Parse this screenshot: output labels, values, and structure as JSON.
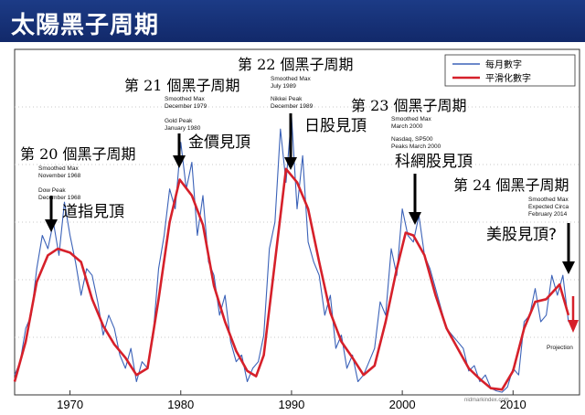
{
  "header": {
    "title": "太陽黑子周期"
  },
  "chart_data": {
    "type": "line",
    "xlim": [
      1965,
      2016
    ],
    "ylim": [
      0,
      260
    ],
    "x_ticks": [
      "1970",
      "1980",
      "1990",
      "2000",
      "2010"
    ],
    "x_tick_values": [
      1970,
      1980,
      1990,
      2000,
      2010
    ],
    "colors": {
      "monthly": "#3b62b8",
      "smoothed": "#d6202a",
      "arrow_red": "#d6202a"
    },
    "series": [
      {
        "name": "平滑化數字",
        "style": "smoothed",
        "x": [
          1965.0,
          1966.0,
          1967.0,
          1968.0,
          1968.9,
          1970.0,
          1971.0,
          1972.0,
          1973.0,
          1974.0,
          1975.0,
          1976.0,
          1977.0,
          1978.0,
          1979.0,
          1979.9,
          1981.0,
          1982.0,
          1983.0,
          1984.0,
          1985.0,
          1986.0,
          1986.8,
          1987.5,
          1988.5,
          1989.5,
          1990.5,
          1991.5,
          1992.5,
          1993.5,
          1994.5,
          1995.5,
          1996.5,
          1997.5,
          1998.5,
          1999.5,
          2000.3,
          2001.0,
          2002.0,
          2003.0,
          2004.0,
          2005.0,
          2006.0,
          2007.0,
          2008.0,
          2009.0,
          2010.0,
          2011.0,
          2012.0,
          2013.0,
          2014.2,
          2015.0
        ],
        "y": [
          10,
          40,
          85,
          105,
          110,
          107,
          100,
          72,
          52,
          38,
          28,
          15,
          20,
          72,
          130,
          162,
          150,
          128,
          82,
          55,
          33,
          18,
          14,
          30,
          100,
          170,
          160,
          140,
          100,
          62,
          40,
          28,
          15,
          22,
          55,
          95,
          122,
          120,
          105,
          75,
          50,
          35,
          20,
          12,
          5,
          4,
          18,
          50,
          70,
          72,
          83,
          60
        ]
      },
      {
        "name": "每月數字",
        "style": "monthly",
        "x": [
          1965.0,
          1965.5,
          1966.0,
          1966.5,
          1967.0,
          1967.5,
          1968.0,
          1968.5,
          1969.0,
          1969.5,
          1970.0,
          1970.5,
          1971.0,
          1971.5,
          1972.0,
          1972.5,
          1973.0,
          1973.5,
          1974.0,
          1974.5,
          1975.0,
          1975.5,
          1976.0,
          1976.5,
          1977.0,
          1977.5,
          1978.0,
          1978.5,
          1979.0,
          1979.5,
          1980.0,
          1980.5,
          1981.0,
          1981.5,
          1982.0,
          1982.5,
          1983.0,
          1983.5,
          1984.0,
          1984.5,
          1985.0,
          1985.5,
          1986.0,
          1986.5,
          1987.0,
          1987.5,
          1988.0,
          1988.5,
          1989.0,
          1989.5,
          1990.0,
          1990.5,
          1991.0,
          1991.5,
          1992.0,
          1992.5,
          1993.0,
          1993.5,
          1994.0,
          1994.5,
          1995.0,
          1995.5,
          1996.0,
          1996.5,
          1997.0,
          1997.5,
          1998.0,
          1998.5,
          1999.0,
          1999.5,
          2000.0,
          2000.5,
          2001.0,
          2001.5,
          2002.0,
          2002.5,
          2003.0,
          2003.5,
          2004.0,
          2004.5,
          2005.0,
          2005.5,
          2006.0,
          2006.5,
          2007.0,
          2007.5,
          2008.0,
          2008.5,
          2009.0,
          2009.5,
          2010.0,
          2010.5,
          2011.0,
          2011.5,
          2012.0,
          2012.5,
          2013.0,
          2013.5,
          2014.0,
          2014.5,
          2015.0
        ],
        "y": [
          15,
          25,
          50,
          60,
          95,
          120,
          110,
          130,
          105,
          145,
          120,
          100,
          75,
          95,
          90,
          70,
          45,
          60,
          50,
          30,
          20,
          35,
          10,
          25,
          20,
          45,
          95,
          120,
          155,
          140,
          190,
          155,
          175,
          120,
          150,
          100,
          90,
          60,
          75,
          40,
          25,
          30,
          10,
          20,
          25,
          45,
          110,
          130,
          200,
          160,
          210,
          140,
          180,
          115,
          100,
          90,
          60,
          75,
          35,
          45,
          20,
          30,
          10,
          15,
          25,
          35,
          70,
          60,
          110,
          90,
          140,
          120,
          115,
          135,
          105,
          95,
          80,
          65,
          50,
          45,
          40,
          35,
          18,
          22,
          10,
          15,
          5,
          3,
          2,
          6,
          20,
          15,
          55,
          60,
          80,
          55,
          60,
          90,
          75,
          90,
          55
        ]
      }
    ],
    "cycles": [
      {
        "label": "第 20 個黑子周期",
        "notes": [
          "Smoothed Max",
          "November 1968",
          "Dow Peak",
          "December 1968"
        ],
        "event": "道指見頂"
      },
      {
        "label": "第 21 個黑子周期",
        "notes": [
          "Smoothed Max",
          "December 1979",
          "Gold Peak",
          "January 1980"
        ],
        "event": "金價見頂"
      },
      {
        "label": "第 22 個黑子周期",
        "notes": [
          "Smoothed Max",
          "July 1989",
          "Nikkei Peak",
          "December 1989"
        ],
        "event": "日股見頂"
      },
      {
        "label": "第 23 個黑子周期",
        "notes": [
          "Smoothed Max",
          "March 2000",
          "Nasdaq, SP500",
          "Peaks March 2000"
        ],
        "event": "科網股見頂"
      },
      {
        "label": "第 24 個黑子周期",
        "notes": [
          "Smoothed Max",
          "Expected Circa",
          "February 2014"
        ],
        "event": "美股見頂?",
        "projection": "Projection"
      }
    ]
  },
  "watermark": "nidmarkindex.com"
}
